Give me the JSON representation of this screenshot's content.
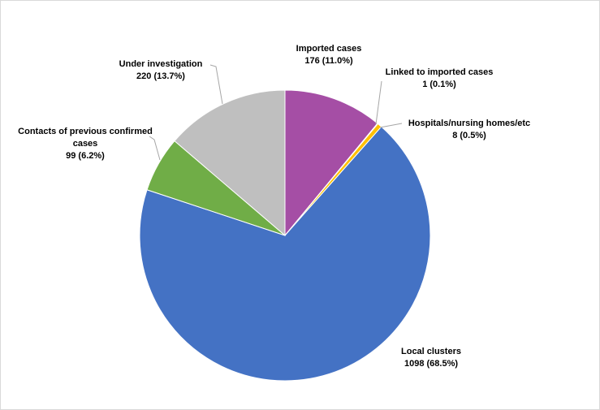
{
  "chart_data": {
    "type": "pie",
    "title": "",
    "start_angle_deg": 0,
    "direction": "clockwise",
    "slices": [
      {
        "key": "imported",
        "label": "Imported cases",
        "value": 176,
        "value_text": "176 (11.0%)",
        "color": "#A54EA5"
      },
      {
        "key": "linked",
        "label": "Linked to imported cases",
        "value": 1,
        "value_text": "1 (0.1%)",
        "color": "#ED7D31"
      },
      {
        "key": "hospitals",
        "label": "Hospitals/nursing  homes/etc",
        "value": 8,
        "value_text": "8 (0.5%)",
        "color": "#FFC000"
      },
      {
        "key": "local",
        "label": "Local clusters",
        "value": 1098,
        "value_text": "1098 (68.5%)",
        "color": "#4472C4"
      },
      {
        "key": "contacts",
        "label": "Contacts of previous confirmed cases",
        "label_lines": [
          "Contacts of previous confirmed",
          "cases"
        ],
        "value": 99,
        "value_text": "99 (6.2%)",
        "color": "#70AD47"
      },
      {
        "key": "under",
        "label": "Under investigation",
        "value": 220,
        "value_text": "220 (13.7%)",
        "color": "#BFBFBF"
      }
    ]
  }
}
